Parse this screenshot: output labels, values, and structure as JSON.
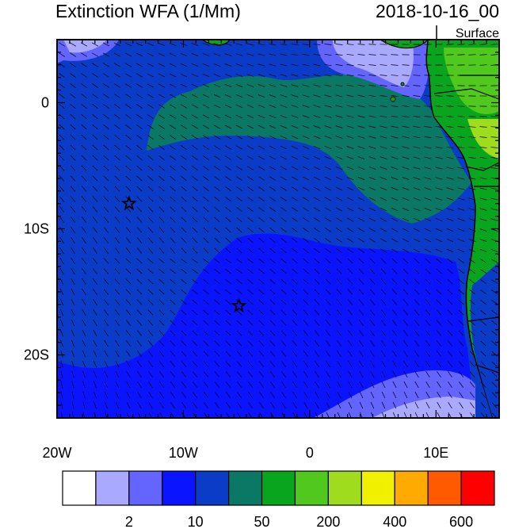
{
  "header": {
    "title": "Extinction WFA (1/Mm)",
    "datetime": "2018-10-16_00",
    "level": "Surface"
  },
  "map": {
    "region": "Southeast Atlantic and West Africa coast",
    "lon_range": [
      -20,
      15
    ],
    "lat_range": [
      -25,
      5
    ],
    "x_ticks": [
      {
        "label": "20W",
        "lon": -20
      },
      {
        "label": "10W",
        "lon": -10
      },
      {
        "label": "0",
        "lon": 0
      },
      {
        "label": "10E",
        "lon": 10
      }
    ],
    "y_ticks": [
      {
        "label": "0",
        "lat": 0
      },
      {
        "label": "10S",
        "lat": -10
      },
      {
        "label": "20S",
        "lat": -20
      }
    ],
    "markers": [
      {
        "name": "star-marker-1",
        "lon": -14.3,
        "lat": -8.0
      },
      {
        "name": "star-marker-2",
        "lon": -5.6,
        "lat": -16.1
      }
    ],
    "wind_vectors": true
  },
  "colorbar": {
    "colors": [
      "#ffffff",
      "#a9a9ff",
      "#6464ff",
      "#0a14ff",
      "#0a3cc8",
      "#0a7864",
      "#0aa51e",
      "#50c81e",
      "#a0dc1e",
      "#f0f000",
      "#ffaa00",
      "#ff5a00",
      "#ff0000"
    ],
    "labels": [
      {
        "text": "2",
        "boundary": 2
      },
      {
        "text": "10",
        "boundary": 4
      },
      {
        "text": "50",
        "boundary": 6
      },
      {
        "text": "200",
        "boundary": 8
      },
      {
        "text": "400",
        "boundary": 10
      },
      {
        "text": "600",
        "boundary": 12
      }
    ]
  }
}
